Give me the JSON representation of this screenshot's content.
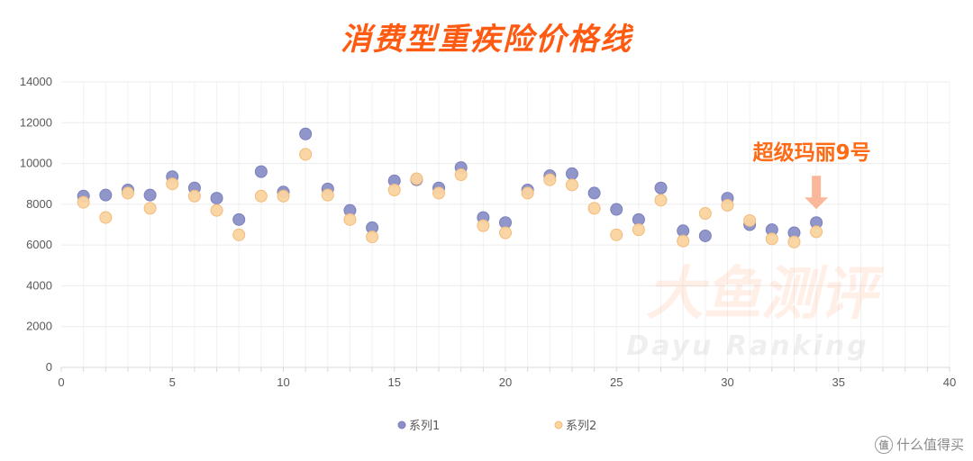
{
  "chart_data": {
    "type": "scatter",
    "title": "消费型重疾险价格线",
    "xlim": [
      0,
      40
    ],
    "ylim": [
      0,
      14000
    ],
    "x_ticks": [
      0,
      5,
      10,
      15,
      20,
      25,
      30,
      35,
      40
    ],
    "y_ticks": [
      0,
      2000,
      4000,
      6000,
      8000,
      10000,
      12000,
      14000
    ],
    "grid": true,
    "legend_position": "bottom",
    "series": [
      {
        "name": "系列1",
        "color": "#8a8fc7",
        "x": [
          1,
          2,
          3,
          4,
          5,
          6,
          7,
          8,
          9,
          10,
          11,
          12,
          13,
          14,
          15,
          16,
          17,
          18,
          19,
          20,
          21,
          22,
          23,
          24,
          25,
          26,
          27,
          28,
          29,
          30,
          31,
          32,
          33,
          34
        ],
        "y": [
          8400,
          8450,
          8700,
          8450,
          9350,
          8800,
          8300,
          7250,
          9600,
          8600,
          11450,
          8750,
          7700,
          6850,
          9150,
          9200,
          8800,
          9800,
          7350,
          7100,
          8700,
          9400,
          9500,
          8550,
          7750,
          7250,
          8800,
          6700,
          6450,
          8300,
          7000,
          6750,
          6600,
          7100
        ]
      },
      {
        "name": "系列2",
        "color": "#fbd4a0",
        "x": [
          1,
          2,
          3,
          4,
          5,
          6,
          7,
          8,
          9,
          10,
          11,
          12,
          13,
          14,
          15,
          16,
          17,
          18,
          19,
          20,
          21,
          22,
          23,
          24,
          25,
          26,
          27,
          28,
          29,
          30,
          31,
          32,
          33,
          34
        ],
        "y": [
          8100,
          7350,
          8550,
          7800,
          9000,
          8400,
          7700,
          6500,
          8400,
          8400,
          10450,
          8450,
          7250,
          6400,
          8700,
          9250,
          8550,
          9450,
          6950,
          6600,
          8550,
          9200,
          8950,
          7800,
          6500,
          6750,
          8200,
          6200,
          7550,
          7950,
          7200,
          6300,
          6150,
          6650
        ]
      }
    ],
    "annotations": [
      {
        "text": "超级玛丽9号",
        "x": 34,
        "y": 7100
      }
    ]
  },
  "watermark": {
    "cn": "大鱼测评",
    "en": "Dayu Ranking"
  },
  "brand": {
    "logo": "值",
    "text": "什么值得买"
  }
}
